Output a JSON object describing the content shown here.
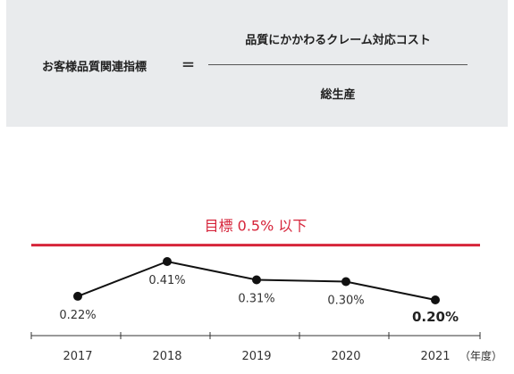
{
  "formula": {
    "left_term": "お客様品質関連指標",
    "equals": "＝",
    "numerator": "品質にかかわるクレーム対応コスト",
    "denominator": "総生産"
  },
  "chart_data": {
    "type": "line",
    "categories": [
      "2017",
      "2018",
      "2019",
      "2020",
      "2021"
    ],
    "values": [
      0.22,
      0.41,
      0.31,
      0.3,
      0.2
    ],
    "value_labels": [
      "0.22%",
      "0.41%",
      "0.31%",
      "0.30%",
      "0.20%"
    ],
    "x_unit_label": "（年度）",
    "target": {
      "label": "目標 0.5% 以下",
      "value": 0.5,
      "color": "#d6243a"
    },
    "line_color": "#111111",
    "axis_color": "#333333",
    "title": "",
    "xlabel": "",
    "ylabel": "",
    "ylim": [
      0.15,
      0.52
    ],
    "grid": false,
    "legend": "none"
  }
}
